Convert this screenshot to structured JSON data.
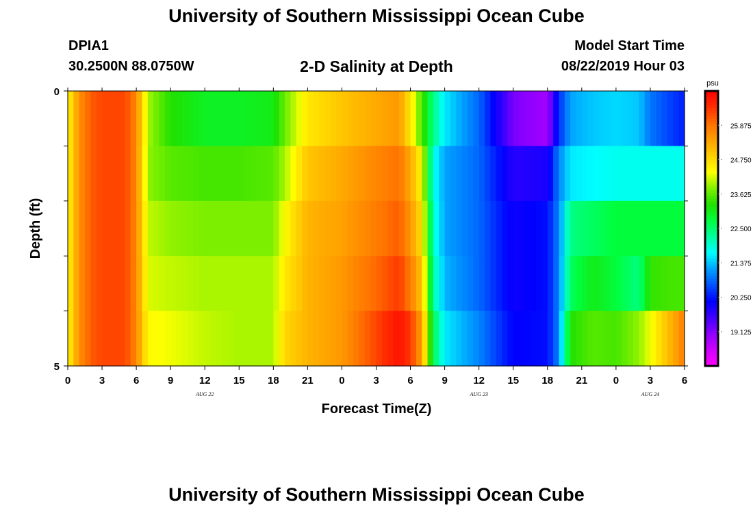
{
  "header": {
    "title": "University of Southern Mississippi Ocean Cube",
    "station_id": "DPIA1",
    "coordinates": "30.2500N 88.0750W",
    "model_start_label": "Model Start Time",
    "model_start_value": "08/22/2019 Hour 03"
  },
  "footer": {
    "title": "University of Southern Mississippi Ocean Cube"
  },
  "chart_data": {
    "type": "heatmap",
    "title": "2-D Salinity at Depth",
    "xlabel": "Forecast Time(Z)",
    "ylabel": "Depth (ft)",
    "x_tick_labels": [
      "0",
      "3",
      "6",
      "9",
      "12",
      "15",
      "18",
      "21",
      "0",
      "3",
      "6",
      "9",
      "12",
      "15",
      "18",
      "21",
      "0",
      "3",
      "6"
    ],
    "date_labels": [
      {
        "label": "AUG 22",
        "hour_index": 12
      },
      {
        "label": "AUG 23",
        "hour_index": 36
      },
      {
        "label": "AUG 24",
        "hour_index": 51
      }
    ],
    "x_range_hours": [
      0,
      54
    ],
    "y_range_ft": [
      0,
      5
    ],
    "y_tick_labels": [
      "0",
      "5"
    ],
    "depth_levels": 5,
    "colorbar": {
      "unit": "psu",
      "vmin": 18.0,
      "vmax": 27.0,
      "tick_values": [
        "25.875",
        "24.750",
        "23.625",
        "22.500",
        "21.375",
        "20.250",
        "19.125"
      ]
    },
    "palette": [
      "#ff00ff",
      "#d000ff",
      "#9000ff",
      "#4000ff",
      "#0000ff",
      "#0050ff",
      "#00a0ff",
      "#00ffff",
      "#00ffa0",
      "#00ff40",
      "#20e000",
      "#80f000",
      "#ffff00",
      "#ffd000",
      "#ffa000",
      "#ff7000",
      "#ff3000",
      "#ff0000"
    ],
    "profiles_hourly": {
      "0": [
        24.4,
        24.4,
        24.4,
        24.4,
        24.4
      ],
      "1": [
        25.6,
        25.6,
        25.6,
        25.6,
        25.6
      ],
      "2": [
        26.1,
        26.1,
        26.1,
        26.1,
        26.1
      ],
      "3": [
        26.3,
        26.3,
        26.3,
        26.3,
        26.3
      ],
      "5": [
        26.3,
        26.3,
        26.3,
        26.3,
        26.3
      ],
      "6": [
        25.7,
        25.7,
        25.7,
        25.7,
        25.7
      ],
      "7": [
        24.0,
        23.9,
        24.1,
        24.2,
        24.4
      ],
      "9": [
        23.3,
        23.6,
        23.9,
        24.1,
        24.3
      ],
      "12": [
        23.0,
        23.5,
        23.8,
        24.0,
        24.1
      ],
      "15": [
        23.0,
        23.5,
        23.8,
        24.0,
        24.0
      ],
      "18": [
        23.1,
        23.6,
        23.8,
        24.0,
        24.0
      ],
      "19": [
        23.7,
        24.0,
        24.4,
        24.6,
        24.8
      ],
      "21": [
        24.6,
        25.0,
        25.2,
        25.2,
        25.2
      ],
      "24": [
        25.0,
        25.3,
        25.4,
        25.5,
        25.5
      ],
      "27": [
        25.3,
        25.7,
        25.8,
        26.0,
        26.3
      ],
      "29": [
        25.5,
        25.9,
        26.1,
        26.4,
        26.8
      ],
      "30": [
        24.6,
        25.3,
        25.5,
        25.8,
        26.4
      ],
      "31": [
        23.5,
        24.4,
        24.7,
        25.0,
        25.4
      ],
      "32": [
        22.4,
        21.8,
        22.0,
        22.2,
        22.7
      ],
      "33": [
        21.6,
        21.2,
        21.2,
        21.3,
        21.6
      ],
      "36": [
        20.8,
        20.8,
        20.8,
        20.8,
        21.0
      ],
      "39": [
        19.2,
        19.8,
        20.0,
        20.0,
        20.1
      ],
      "42": [
        18.9,
        19.9,
        20.2,
        20.2,
        20.2
      ],
      "43": [
        20.4,
        21.0,
        21.0,
        21.0,
        21.0
      ],
      "44": [
        21.2,
        21.6,
        22.4,
        22.6,
        23.3
      ],
      "46": [
        21.4,
        21.7,
        22.6,
        23.1,
        23.6
      ],
      "48": [
        21.5,
        21.8,
        22.8,
        22.8,
        23.5
      ],
      "50": [
        21.4,
        21.8,
        22.8,
        22.4,
        23.9
      ],
      "51": [
        20.9,
        21.8,
        22.8,
        23.4,
        24.3
      ],
      "53": [
        20.5,
        21.8,
        22.8,
        23.5,
        25.3
      ],
      "54": [
        20.3,
        21.8,
        22.8,
        23.5,
        25.8
      ]
    }
  }
}
